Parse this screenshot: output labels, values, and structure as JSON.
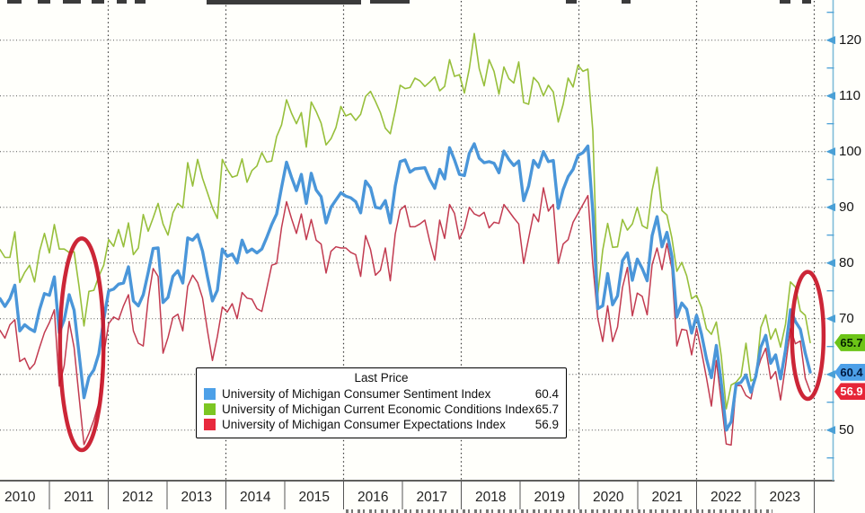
{
  "chart_data": {
    "type": "line",
    "title": "Last Price",
    "x_unit": "month",
    "start_date": {
      "year": 2010,
      "month": 3
    },
    "end_date": {
      "year": 2023,
      "month": 11
    },
    "x_axis": {
      "years": [
        2010,
        2011,
        2012,
        2013,
        2014,
        2015,
        2016,
        2017,
        2018,
        2019,
        2020,
        2021,
        2022,
        2023
      ]
    },
    "y_axis": {
      "side": "right",
      "major_ticks": [
        50,
        60,
        70,
        80,
        90,
        100,
        110,
        120
      ],
      "minor_ticks": [
        45,
        55,
        65,
        75,
        85,
        95,
        105,
        115,
        125
      ],
      "ylim": [
        41,
        127
      ],
      "grid": "dotted"
    },
    "series": [
      {
        "name": "University of Michigan Consumer Expectations Index",
        "color": "#c23b50",
        "width": 1.5,
        "last_price": 56.9,
        "values": [
          67.9,
          66.5,
          68.9,
          69.8,
          62.3,
          62.9,
          60.9,
          61.9,
          64.8,
          67.5,
          69.3,
          71.6,
          57.9,
          61.6,
          69.5,
          64.8,
          56.0,
          47.4,
          49.4,
          51.8,
          54.8,
          63.6,
          69.1,
          70.3,
          69.8,
          72.3,
          74.3,
          67.8,
          65.6,
          65.1,
          73.5,
          79.0,
          77.6,
          63.8,
          66.6,
          70.2,
          70.8,
          67.8,
          75.8,
          77.8,
          76.5,
          73.7,
          67.8,
          62.5,
          66.8,
          72.1,
          71.2,
          72.7,
          70.0,
          74.7,
          73.7,
          73.5,
          71.8,
          71.3,
          75.4,
          79.6,
          79.9,
          86.4,
          91.0,
          88.0,
          85.3,
          88.8,
          84.2,
          87.8,
          84.1,
          83.4,
          78.2,
          82.1,
          82.9,
          82.7,
          82.7,
          81.9,
          81.5,
          77.6,
          84.9,
          82.4,
          77.8,
          78.7,
          82.7,
          76.8,
          85.2,
          89.5,
          90.3,
          86.5,
          86.5,
          87.0,
          87.7,
          83.8,
          80.5,
          87.7,
          84.4,
          90.5,
          88.9,
          84.3,
          86.3,
          90.0,
          88.8,
          88.4,
          89.1,
          86.3,
          87.3,
          87.1,
          90.5,
          89.3,
          88.1,
          87.0,
          79.9,
          84.4,
          88.8,
          87.4,
          93.5,
          89.3,
          90.5,
          79.9,
          83.4,
          84.2,
          87.3,
          88.9,
          90.5,
          92.1,
          79.7,
          70.1,
          65.9,
          72.3,
          65.9,
          68.5,
          75.6,
          79.2,
          70.5,
          74.6,
          74.0,
          70.7,
          79.7,
          82.7,
          78.8,
          83.5,
          79.0,
          65.1,
          68.1,
          67.9,
          63.5,
          68.3,
          64.1,
          59.4,
          54.3,
          62.5,
          55.2,
          47.5,
          47.3,
          58.0,
          58.0,
          56.2,
          55.6,
          59.9,
          62.7,
          64.7,
          59.2,
          60.5,
          55.4,
          61.5,
          68.3,
          65.5,
          66.0,
          59.3,
          56.9
        ]
      },
      {
        "name": "University of Michigan Current Economic Conditions Index",
        "color": "#97bf3b",
        "width": 1.6,
        "last_price": 65.7,
        "values": [
          82.4,
          81.0,
          81.0,
          85.6,
          76.5,
          78.3,
          79.6,
          76.6,
          82.1,
          85.3,
          81.8,
          86.9,
          82.5,
          82.5,
          81.9,
          82.0,
          75.8,
          68.7,
          74.9,
          75.1,
          77.6,
          79.6,
          84.2,
          83.0,
          86.0,
          82.9,
          87.2,
          81.5,
          82.7,
          88.7,
          85.7,
          88.1,
          90.7,
          87.0,
          85.0,
          89.0,
          90.7,
          89.9,
          98.0,
          93.8,
          98.6,
          95.2,
          92.6,
          89.9,
          88.0,
          98.6,
          96.8,
          95.4,
          95.7,
          98.7,
          94.5,
          96.6,
          97.4,
          99.8,
          98.1,
          98.3,
          102.7,
          104.8,
          109.3,
          106.9,
          105.0,
          107.0,
          100.8,
          108.9,
          107.2,
          105.1,
          101.2,
          102.3,
          104.3,
          108.1,
          106.4,
          106.8,
          105.6,
          106.7,
          109.9,
          110.8,
          109.0,
          107.0,
          104.2,
          103.2,
          107.3,
          111.9,
          111.3,
          111.5,
          113.2,
          112.7,
          111.7,
          112.5,
          113.4,
          110.9,
          111.7,
          116.5,
          113.5,
          113.8,
          110.5,
          114.9,
          121.2,
          114.9,
          111.8,
          116.5,
          114.4,
          110.3,
          115.2,
          113.1,
          112.3,
          116.1,
          108.8,
          108.5,
          113.3,
          112.3,
          110.0,
          111.9,
          110.7,
          105.3,
          108.5,
          113.2,
          111.6,
          115.5,
          114.4,
          114.8,
          103.7,
          74.3,
          82.3,
          87.1,
          82.8,
          82.9,
          87.8,
          85.9,
          87.0,
          90.0,
          86.7,
          86.2,
          93.0,
          97.2,
          89.4,
          88.6,
          84.5,
          78.5,
          80.1,
          77.7,
          73.6,
          74.2,
          72.0,
          68.2,
          67.2,
          69.4,
          63.3,
          53.8,
          58.1,
          58.6,
          59.7,
          65.6,
          58.8,
          59.4,
          68.4,
          70.7,
          66.3,
          68.2,
          64.9,
          69.0,
          76.6,
          75.7,
          71.4,
          70.6,
          65.7
        ]
      },
      {
        "name": "University of Michigan Consumer Sentiment Index",
        "color": "#4a96d9",
        "width": 3.4,
        "last_price": 60.4,
        "values": [
          73.6,
          72.2,
          73.6,
          76.0,
          67.8,
          68.9,
          68.2,
          67.7,
          71.6,
          74.5,
          74.2,
          77.5,
          67.5,
          69.8,
          74.3,
          71.5,
          63.7,
          55.8,
          59.5,
          60.8,
          63.7,
          69.9,
          75.0,
          75.3,
          76.2,
          76.4,
          79.3,
          73.2,
          72.3,
          74.3,
          78.3,
          82.6,
          82.7,
          72.9,
          73.8,
          77.6,
          78.6,
          76.4,
          84.5,
          84.1,
          85.1,
          82.1,
          77.5,
          73.2,
          75.1,
          82.5,
          81.2,
          81.6,
          80.0,
          84.1,
          81.9,
          82.5,
          81.8,
          82.5,
          84.6,
          86.9,
          88.8,
          93.6,
          98.1,
          95.4,
          93.0,
          95.9,
          90.7,
          96.1,
          93.1,
          91.9,
          87.2,
          90.0,
          91.3,
          92.6,
          92.0,
          91.7,
          91.0,
          89.0,
          94.7,
          93.5,
          90.0,
          89.8,
          91.2,
          87.2,
          93.8,
          98.2,
          98.5,
          96.3,
          96.9,
          97.0,
          97.1,
          95.0,
          93.4,
          96.8,
          95.1,
          100.7,
          98.5,
          95.9,
          95.7,
          99.7,
          101.4,
          98.8,
          98.0,
          98.2,
          97.9,
          96.2,
          100.1,
          98.6,
          97.5,
          98.3,
          91.2,
          93.8,
          98.4,
          97.2,
          100.0,
          98.2,
          98.4,
          89.8,
          93.2,
          95.5,
          96.8,
          99.3,
          99.8,
          101.0,
          89.1,
          71.8,
          72.3,
          78.1,
          72.5,
          74.1,
          80.4,
          81.8,
          76.9,
          80.7,
          79.0,
          76.8,
          84.9,
          88.3,
          82.9,
          85.5,
          81.2,
          70.3,
          72.8,
          71.7,
          67.4,
          70.6,
          67.2,
          62.8,
          59.4,
          65.2,
          58.4,
          50.0,
          51.5,
          58.2,
          58.6,
          59.9,
          56.8,
          59.7,
          64.9,
          67.0,
          62.0,
          63.5,
          59.2,
          64.4,
          71.6,
          69.5,
          68.1,
          63.8,
          60.4
        ]
      }
    ],
    "annotations": [
      {
        "type": "ellipse",
        "name": "circle-2011-dip",
        "center_date": 2011.55,
        "center_value": 65.4,
        "radius_months": 4.4,
        "radius_value": 19.0,
        "color": "#c81426"
      },
      {
        "type": "ellipse",
        "name": "circle-2023-dip",
        "center_date": 2023.89,
        "center_value": 67.0,
        "radius_months": 3.2,
        "radius_value": 11.4,
        "color": "#c81426"
      }
    ]
  },
  "legend": {
    "title": "Last Price",
    "items": [
      {
        "label": "University of Michigan Consumer Sentiment Index",
        "value": 60.4,
        "color": "#4da0e8"
      },
      {
        "label": "University of Michigan Current Economic Conditions Index",
        "value": 65.7,
        "color": "#7cc623"
      },
      {
        "label": "University of Michigan Consumer Expectations Index",
        "value": 56.9,
        "color": "#e8293e"
      }
    ]
  },
  "last_price_tags": [
    {
      "value": 65.7,
      "bg": "#6cc417",
      "fg": "#062200"
    },
    {
      "value": 60.4,
      "bg": "#4da0e8",
      "fg": "#001a40"
    },
    {
      "value": 56.9,
      "bg": "#e62637",
      "fg": "#ffffff"
    }
  ],
  "axis_colors": {
    "axis_line": "#7fbcd9",
    "tick": "#4aa0d6",
    "grid": "#555555"
  }
}
